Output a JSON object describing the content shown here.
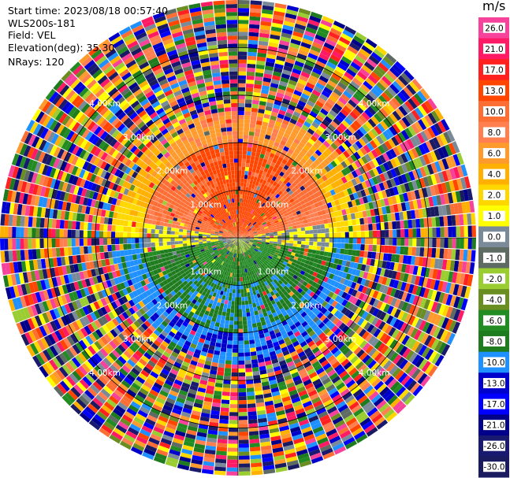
{
  "header": {
    "start_time": "Start time: 2023/08/18 00:57:40",
    "instrument": "WLS200s-181",
    "field": "Field: VEL",
    "elevation": "Elevation(deg): 35.30",
    "nrays": "NRays: 120"
  },
  "colorbar": {
    "unit": "m/s",
    "ticks": [
      "26.0",
      "21.0",
      "17.0",
      "13.0",
      "10.0",
      "8.0",
      "6.0",
      "4.0",
      "2.0",
      "1.0",
      "0.0",
      "-1.0",
      "-2.0",
      "-4.0",
      "-6.0",
      "-8.0",
      "-10.0",
      "-13.0",
      "-17.0",
      "-21.0",
      "-26.0",
      "-30.0"
    ],
    "colors": [
      "#f7429b",
      "#ff1a66",
      "#ff2020",
      "#ff4500",
      "#fd6e34",
      "#ff7f50",
      "#ff9b2d",
      "#ffb000",
      "#ffd700",
      "#ffff00",
      "#7b8a99",
      "#5e6b63",
      "#9acd32",
      "#6b8e23",
      "#228b22",
      "#1e7b1e",
      "#1e90ff",
      "#0000cd",
      "#0000ff",
      "#00008b",
      "#191970",
      "#1a1a60"
    ]
  },
  "chart_data": {
    "type": "heatmap",
    "field": "VEL",
    "units": "m/s",
    "nrays": 120,
    "elevation_deg": 35.3,
    "range_rings_km": [
      1.0,
      2.0,
      3.0,
      4.0
    ],
    "range_labels": [
      "1.00km",
      "2.00km",
      "3.00km",
      "4.00km"
    ],
    "pattern_by_range_km": [
      {
        "range_km": [
          0.0,
          0.3
        ],
        "north_half_ms": 10,
        "south_half_ms": 0
      },
      {
        "range_km": [
          0.3,
          1.0
        ],
        "north_half_ms": 10,
        "east_west_ms": 1,
        "south_half_ms": -4
      },
      {
        "range_km": [
          1.0,
          2.0
        ],
        "north_half_ms": 8,
        "east_west_ms": 1,
        "south_half_ms": -6
      },
      {
        "range_km": [
          2.0,
          2.7
        ],
        "north_half_ms": 2,
        "south_half_ms": -8
      },
      {
        "range_km": [
          2.7,
          5.0
        ],
        "note": "noise"
      }
    ],
    "grid": true
  }
}
